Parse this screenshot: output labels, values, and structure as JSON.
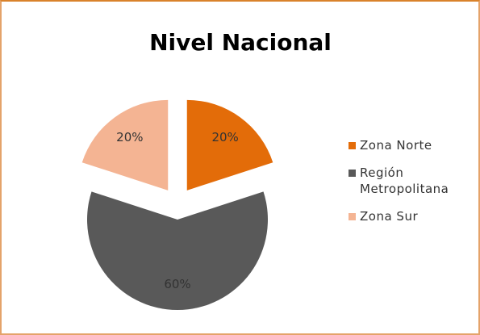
{
  "chart_data": {
    "type": "pie",
    "title": "Nivel Nacional",
    "categories": [
      "Zona Norte",
      "Región Metropolitana",
      "Zona Sur"
    ],
    "values": [
      20,
      60,
      20
    ],
    "value_labels": [
      "20%",
      "60%",
      "20%"
    ],
    "colors": [
      "#e36c09",
      "#595959",
      "#f4b493"
    ],
    "legend": "right"
  }
}
